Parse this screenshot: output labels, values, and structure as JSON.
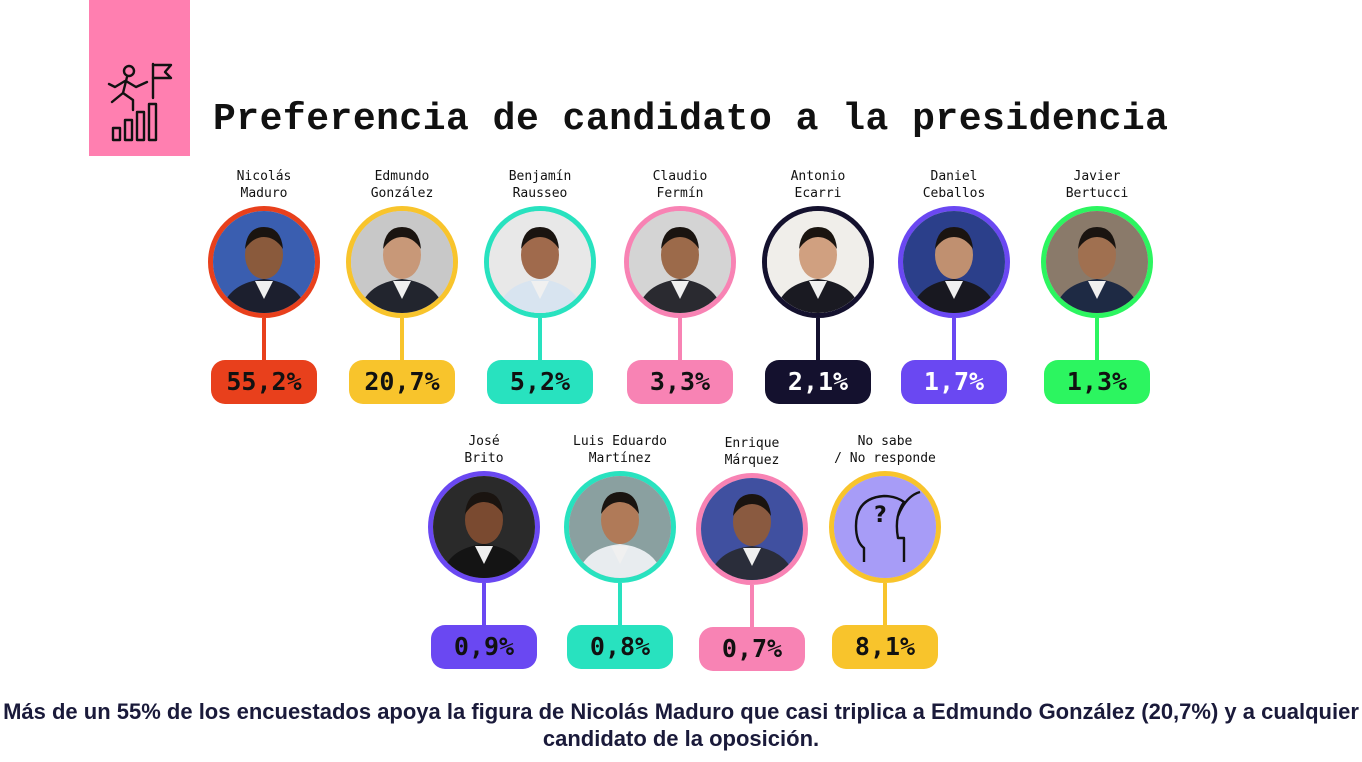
{
  "header": {
    "title": "Preferencia de candidato a la presidencia",
    "icon": "climb-to-flag-growth-icon",
    "accent": "#ff7fb0"
  },
  "chart_data": {
    "type": "bar",
    "title": "Preferencia de candidato a la presidencia",
    "unit": "%",
    "categories": [
      "Nicolás Maduro",
      "Edmundo González",
      "Benjamín Rausseo",
      "Claudio Fermín",
      "Antonio Ecarri",
      "Daniel Ceballos",
      "Javier Bertucci",
      "José Brito",
      "Luis Eduardo Martínez",
      "Enrique Márquez",
      "No sabe / No responde"
    ],
    "values": [
      55.2,
      20.7,
      5.2,
      3.3,
      2.1,
      1.7,
      1.3,
      0.9,
      0.8,
      0.7,
      8.1
    ],
    "candidates": [
      {
        "name": "Nicolás\nMaduro",
        "value": "55,2%",
        "color": "#e8401c",
        "text_color": "#111111"
      },
      {
        "name": "Edmundo\nGonzález",
        "value": "20,7%",
        "color": "#f8c42c",
        "text_color": "#111111"
      },
      {
        "name": "Benjamín\nRausseo",
        "value": "5,2%",
        "color": "#28e2bf",
        "text_color": "#111111"
      },
      {
        "name": "Claudio\nFermín",
        "value": "3,3%",
        "color": "#f883b4",
        "text_color": "#111111"
      },
      {
        "name": "Antonio\nEcarri",
        "value": "2,1%",
        "color": "#14112e",
        "text_color": "#ffffff"
      },
      {
        "name": "Daniel\nCeballos",
        "value": "1,7%",
        "color": "#6a48f2",
        "text_color": "#ffffff"
      },
      {
        "name": "Javier\nBertucci",
        "value": "1,3%",
        "color": "#2cf560",
        "text_color": "#111111"
      },
      {
        "name": "José\nBrito",
        "value": "0,9%",
        "color": "#6a48f2",
        "text_color": "#111111"
      },
      {
        "name": "Luis Eduardo\nMartínez",
        "value": "0,8%",
        "color": "#28e2bf",
        "text_color": "#111111"
      },
      {
        "name": "Enrique\nMárquez",
        "value": "0,7%",
        "color": "#f883b4",
        "text_color": "#111111"
      },
      {
        "name": "No sabe\n/ No responde",
        "value": "8,1%",
        "color": "#f8c42c",
        "text_color": "#111111"
      }
    ]
  },
  "caption": "Más de un 55% de los encuestados apoya la figura de Nicolás Maduro que casi triplica a Edmundo González (20,7%) y a cualquier candidato de la oposición."
}
